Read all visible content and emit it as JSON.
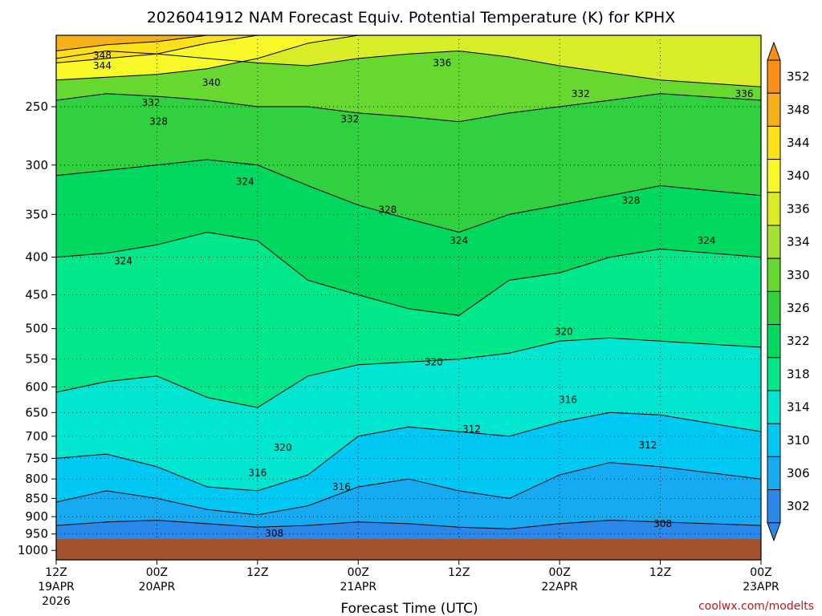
{
  "chart_data": {
    "type": "heatmap",
    "title": "2026041912 NAM Forecast Equiv. Potential Temperature (K) for KPHX",
    "xlabel": "Forecast Time (UTC)",
    "ylabel": "",
    "credit": "coolwx.com/modelts",
    "x_ticks": [
      {
        "hour": 0,
        "line1": "12Z",
        "line2": "19APR",
        "line3": "2026"
      },
      {
        "hour": 12,
        "line1": "00Z",
        "line2": "20APR",
        "line3": ""
      },
      {
        "hour": 24,
        "line1": "12Z",
        "line2": "",
        "line3": ""
      },
      {
        "hour": 36,
        "line1": "00Z",
        "line2": "21APR",
        "line3": ""
      },
      {
        "hour": 48,
        "line1": "12Z",
        "line2": "",
        "line3": ""
      },
      {
        "hour": 60,
        "line1": "00Z",
        "line2": "22APR",
        "line3": ""
      },
      {
        "hour": 72,
        "line1": "12Z",
        "line2": "",
        "line3": ""
      },
      {
        "hour": 84,
        "line1": "00Z",
        "line2": "23APR",
        "line3": ""
      }
    ],
    "xlim": [
      0,
      84
    ],
    "y_ticks": [
      "250",
      "300",
      "350",
      "400",
      "450",
      "500",
      "550",
      "600",
      "650",
      "700",
      "750",
      "800",
      "850",
      "900",
      "950",
      "1000"
    ],
    "y_tick_values": [
      250,
      300,
      350,
      400,
      450,
      500,
      550,
      600,
      650,
      700,
      750,
      800,
      850,
      900,
      950,
      1000
    ],
    "ylim": [
      1030,
      200
    ],
    "y_scale": "log",
    "grid": true,
    "colorbar": {
      "placement": "right",
      "labels": [
        "352",
        "348",
        "344",
        "340",
        "336",
        "334",
        "330",
        "326",
        "322",
        "318",
        "314",
        "310",
        "306",
        "302"
      ],
      "levels": [
        302,
        306,
        310,
        314,
        318,
        322,
        326,
        330,
        334,
        336,
        340,
        344,
        348,
        352
      ],
      "colors": [
        "#2b88e8",
        "#16aaf2",
        "#00c8f5",
        "#00e6d0",
        "#00e88a",
        "#00d860",
        "#30d040",
        "#66d830",
        "#a6e030",
        "#d8ec28",
        "#f8f828",
        "#fce018",
        "#f8b018",
        "#f89018"
      ]
    },
    "terrain_color": "#a0522d",
    "surface_pressure": 965,
    "series": [
      {
        "level": 308,
        "p": [
          925,
          915,
          910,
          920,
          930,
          925,
          915,
          920,
          930,
          935,
          920,
          910,
          915,
          925
        ]
      },
      {
        "level": 312,
        "p": [
          860,
          830,
          850,
          880,
          895,
          870,
          820,
          800,
          830,
          850,
          790,
          760,
          770,
          800
        ]
      },
      {
        "level": 316,
        "p": [
          750,
          740,
          770,
          820,
          830,
          790,
          700,
          680,
          690,
          700,
          670,
          650,
          655,
          690
        ]
      },
      {
        "level": 320,
        "p": [
          610,
          590,
          580,
          620,
          640,
          580,
          560,
          555,
          550,
          540,
          520,
          515,
          520,
          530
        ]
      },
      {
        "level": 324,
        "p": [
          400,
          395,
          385,
          370,
          380,
          430,
          450,
          470,
          480,
          430,
          420,
          400,
          390,
          400
        ]
      },
      {
        "level": 328,
        "p": [
          310,
          305,
          300,
          295,
          300,
          320,
          340,
          355,
          370,
          350,
          340,
          330,
          320,
          330
        ]
      },
      {
        "level": 332,
        "p": [
          245,
          240,
          242,
          245,
          250,
          250,
          255,
          258,
          262,
          255,
          250,
          245,
          240,
          245
        ]
      },
      {
        "level": 336,
        "p": [
          215,
          210,
          212,
          215,
          218,
          220,
          215,
          212,
          210,
          214,
          220,
          225,
          230,
          235
        ]
      },
      {
        "level": 340,
        "p": [
          230,
          228,
          226,
          222,
          215,
          205,
          200,
          200,
          200,
          200,
          200,
          200,
          200,
          200
        ]
      },
      {
        "level": 344,
        "p": [
          218,
          215,
          212,
          205,
          200,
          200,
          200,
          200,
          200,
          200,
          200,
          200,
          200,
          200
        ]
      },
      {
        "level": 348,
        "p": [
          210,
          206,
          204,
          200,
          200,
          200,
          200,
          200,
          200,
          200,
          200,
          200,
          200,
          200
        ]
      }
    ],
    "series_hours": [
      0,
      6,
      12,
      18,
      24,
      30,
      36,
      42,
      48,
      54,
      60,
      66,
      72,
      84
    ],
    "contour_labels": [
      {
        "text": "348",
        "hour": 5.5,
        "p": 213
      },
      {
        "text": "344",
        "hour": 5.5,
        "p": 220
      },
      {
        "text": "336",
        "hour": 46,
        "p": 218
      },
      {
        "text": "340",
        "hour": 18.5,
        "p": 232
      },
      {
        "text": "332",
        "hour": 11.3,
        "p": 247
      },
      {
        "text": "328",
        "hour": 12.2,
        "p": 262
      },
      {
        "text": "332",
        "hour": 35,
        "p": 260
      },
      {
        "text": "332",
        "hour": 62.5,
        "p": 240
      },
      {
        "text": "336",
        "hour": 82,
        "p": 240
      },
      {
        "text": "324",
        "hour": 22.5,
        "p": 316
      },
      {
        "text": "328",
        "hour": 39.5,
        "p": 345
      },
      {
        "text": "328",
        "hour": 68.5,
        "p": 335
      },
      {
        "text": "324",
        "hour": 48,
        "p": 380
      },
      {
        "text": "324",
        "hour": 77.5,
        "p": 380
      },
      {
        "text": "324",
        "hour": 8,
        "p": 405
      },
      {
        "text": "320",
        "hour": 60.5,
        "p": 505
      },
      {
        "text": "320",
        "hour": 45,
        "p": 555
      },
      {
        "text": "316",
        "hour": 61,
        "p": 625
      },
      {
        "text": "312",
        "hour": 49.5,
        "p": 685
      },
      {
        "text": "312",
        "hour": 70.5,
        "p": 720
      },
      {
        "text": "320",
        "hour": 27,
        "p": 725
      },
      {
        "text": "316",
        "hour": 24,
        "p": 785
      },
      {
        "text": "316",
        "hour": 34,
        "p": 820
      },
      {
        "text": "308",
        "hour": 26,
        "p": 948
      },
      {
        "text": "308",
        "hour": 72.3,
        "p": 920
      }
    ]
  }
}
